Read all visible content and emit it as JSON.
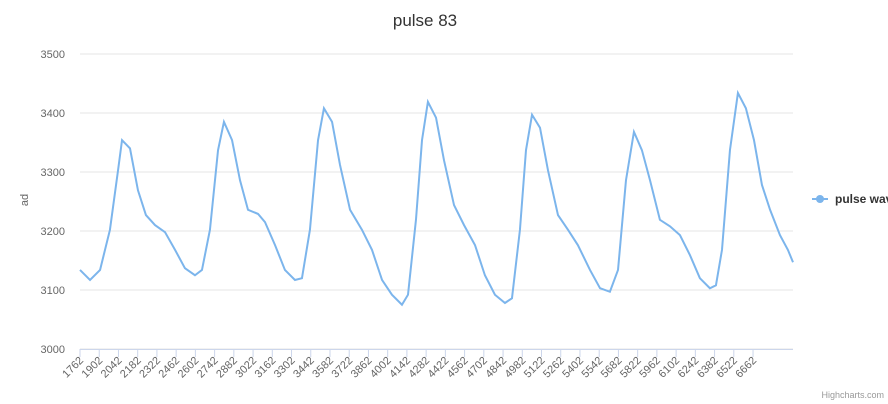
{
  "chart_data": {
    "type": "line",
    "title": "pulse 83",
    "y_label": "ad",
    "credits": "Highcharts.com",
    "legend_position": "right",
    "grid": true,
    "xlim": [
      1762,
      6953
    ],
    "ylim": [
      3000,
      3500
    ],
    "xticks": [
      1762,
      1902,
      2042,
      2182,
      2322,
      2462,
      2602,
      2742,
      2882,
      3022,
      3162,
      3302,
      3442,
      3582,
      3722,
      3862,
      4002,
      4142,
      4282,
      4422,
      4562,
      4702,
      4842,
      4982,
      5122,
      5262,
      5402,
      5542,
      5682,
      5822,
      5962,
      6102,
      6242,
      6382,
      6522,
      6662
    ],
    "yticks": [
      3000,
      3100,
      3200,
      3300,
      3400,
      3500
    ],
    "series": [
      {
        "name": "pulse wav",
        "color": "#7cb5ec",
        "x": [
          1762,
          1835,
          1908,
          1980,
          2039,
          2068,
          2126,
          2184,
          2242,
          2308,
          2381,
          2454,
          2526,
          2599,
          2650,
          2708,
          2767,
          2810,
          2869,
          2927,
          2985,
          3058,
          3109,
          3182,
          3254,
          3327,
          3378,
          3436,
          3495,
          3538,
          3597,
          3655,
          3728,
          3815,
          3888,
          3961,
          4033,
          4106,
          4150,
          4208,
          4252,
          4295,
          4354,
          4412,
          4485,
          4558,
          4638,
          4710,
          4783,
          4856,
          4907,
          4965,
          5009,
          5053,
          5111,
          5169,
          5242,
          5315,
          5387,
          5475,
          5548,
          5620,
          5679,
          5737,
          5795,
          5853,
          5912,
          5984,
          6057,
          6130,
          6203,
          6275,
          6348,
          6392,
          6436,
          6494,
          6552,
          6610,
          6669,
          6727,
          6786,
          6858,
          6916,
          6953
        ],
        "values": [
          3134,
          3117,
          3134,
          3202,
          3303,
          3354,
          3340,
          3269,
          3227,
          3210,
          3198,
          3168,
          3137,
          3125,
          3134,
          3202,
          3337,
          3385,
          3354,
          3286,
          3236,
          3229,
          3215,
          3176,
          3134,
          3117,
          3120,
          3202,
          3354,
          3408,
          3385,
          3312,
          3236,
          3202,
          3168,
          3117,
          3092,
          3075,
          3092,
          3219,
          3354,
          3419,
          3392,
          3320,
          3244,
          3210,
          3176,
          3125,
          3092,
          3078,
          3086,
          3202,
          3337,
          3397,
          3375,
          3303,
          3227,
          3202,
          3176,
          3134,
          3103,
          3097,
          3134,
          3286,
          3368,
          3337,
          3286,
          3219,
          3208,
          3193,
          3159,
          3120,
          3103,
          3108,
          3168,
          3337,
          3434,
          3408,
          3354,
          3278,
          3236,
          3193,
          3168,
          3147
        ]
      }
    ]
  }
}
